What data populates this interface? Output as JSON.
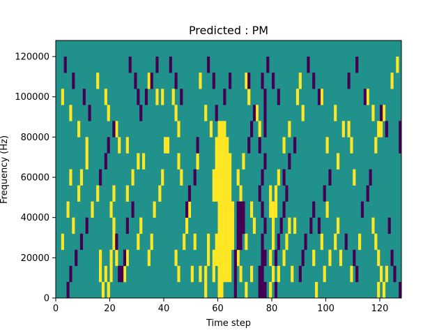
{
  "chart_data": {
    "type": "heatmap",
    "title": "Predicted : PM",
    "xlabel": "Time step",
    "ylabel": "Frequency (Hz)",
    "xlim": [
      0,
      128
    ],
    "ylim": [
      0,
      128000
    ],
    "xticks": [
      0,
      20,
      40,
      60,
      80,
      100,
      120
    ],
    "yticks": [
      0,
      20000,
      40000,
      60000,
      80000,
      100000,
      120000
    ],
    "grid": false,
    "legend": "none",
    "colors": {
      "background": "#21918c",
      "high": "#fde725",
      "low": "#440154"
    },
    "cells_high": [
      [
        60,
        10
      ],
      [
        60,
        9
      ],
      [
        60,
        8
      ],
      [
        60,
        7
      ],
      [
        60,
        6
      ],
      [
        60,
        5
      ],
      [
        60,
        4
      ],
      [
        60,
        3
      ],
      [
        60,
        2
      ],
      [
        60,
        1
      ],
      [
        60,
        0
      ],
      [
        61,
        10
      ],
      [
        61,
        9
      ],
      [
        61,
        8
      ],
      [
        61,
        7
      ],
      [
        61,
        6
      ],
      [
        61,
        5
      ],
      [
        61,
        4
      ],
      [
        61,
        3
      ],
      [
        61,
        2
      ],
      [
        61,
        1
      ],
      [
        61,
        0
      ],
      [
        62,
        10
      ],
      [
        62,
        9
      ],
      [
        62,
        8
      ],
      [
        62,
        7
      ],
      [
        62,
        6
      ],
      [
        62,
        5
      ],
      [
        62,
        4
      ],
      [
        62,
        3
      ],
      [
        62,
        2
      ],
      [
        62,
        1
      ],
      [
        63,
        9
      ],
      [
        63,
        8
      ],
      [
        63,
        7
      ],
      [
        63,
        6
      ],
      [
        63,
        5
      ],
      [
        63,
        4
      ],
      [
        63,
        3
      ],
      [
        63,
        2
      ],
      [
        63,
        1
      ],
      [
        64,
        8
      ],
      [
        64,
        7
      ],
      [
        64,
        6
      ],
      [
        64,
        5
      ],
      [
        64,
        4
      ],
      [
        64,
        3
      ],
      [
        64,
        2
      ],
      [
        64,
        1
      ],
      [
        65,
        5
      ],
      [
        65,
        4
      ],
      [
        65,
        3
      ],
      [
        59,
        9
      ],
      [
        59,
        8
      ],
      [
        59,
        7
      ],
      [
        59,
        6
      ],
      [
        58,
        6
      ],
      [
        58,
        7
      ],
      [
        59,
        3
      ],
      [
        59,
        2
      ],
      [
        58,
        2
      ],
      [
        58,
        1
      ],
      [
        56,
        2
      ],
      [
        56,
        3
      ],
      [
        55,
        1
      ],
      [
        55,
        0
      ],
      [
        53,
        1
      ],
      [
        20,
        1
      ],
      [
        20,
        2
      ],
      [
        21,
        3
      ],
      [
        21,
        4
      ],
      [
        20,
        5
      ],
      [
        21,
        6
      ],
      [
        19,
        0
      ],
      [
        18,
        1
      ],
      [
        17,
        0
      ],
      [
        16,
        1
      ],
      [
        16,
        2
      ],
      [
        22,
        2
      ],
      [
        30,
        3
      ],
      [
        31,
        4
      ],
      [
        35,
        3
      ],
      [
        34,
        2
      ],
      [
        25,
        1
      ],
      [
        26,
        2
      ],
      [
        79,
        0
      ],
      [
        80,
        1
      ],
      [
        79,
        2
      ],
      [
        80,
        3
      ],
      [
        80,
        4
      ],
      [
        80,
        5
      ],
      [
        79,
        6
      ],
      [
        81,
        6
      ],
      [
        81,
        5
      ],
      [
        79,
        5
      ],
      [
        82,
        1
      ],
      [
        82,
        7
      ],
      [
        84,
        2
      ],
      [
        85,
        3
      ],
      [
        86,
        4
      ],
      [
        87,
        1
      ],
      [
        88,
        4
      ],
      [
        46,
        7
      ],
      [
        45,
        8
      ],
      [
        49,
        5
      ],
      [
        50,
        1
      ],
      [
        51,
        3
      ],
      [
        26,
        9
      ],
      [
        32,
        8
      ],
      [
        34,
        13
      ],
      [
        37,
        12
      ],
      [
        39,
        12
      ],
      [
        40,
        9
      ],
      [
        67,
        7
      ],
      [
        68,
        6
      ],
      [
        69,
        8
      ],
      [
        70,
        3
      ],
      [
        72,
        5
      ],
      [
        73,
        4
      ],
      [
        95,
        2
      ],
      [
        98,
        3
      ],
      [
        100,
        5
      ],
      [
        103,
        3
      ],
      [
        104,
        4
      ],
      [
        105,
        2
      ],
      [
        109,
        1
      ],
      [
        112,
        3
      ],
      [
        117,
        4
      ],
      [
        118,
        3
      ],
      [
        119,
        2
      ],
      [
        120,
        1
      ],
      [
        121,
        0
      ],
      [
        122,
        1
      ],
      [
        119,
        0
      ],
      [
        2,
        3
      ],
      [
        4,
        5
      ],
      [
        9,
        7
      ],
      [
        8,
        6
      ],
      [
        6,
        4
      ],
      [
        5,
        7
      ],
      [
        118,
        9
      ],
      [
        120,
        10
      ],
      [
        121,
        11
      ],
      [
        124,
        13
      ],
      [
        126,
        14
      ],
      [
        100,
        9
      ],
      [
        104,
        8
      ],
      [
        108,
        10
      ],
      [
        110,
        7
      ],
      [
        90,
        13
      ],
      [
        89,
        12
      ],
      [
        91,
        11
      ],
      [
        86,
        10
      ],
      [
        84,
        9
      ],
      [
        70,
        13
      ],
      [
        71,
        12
      ],
      [
        74,
        11
      ],
      [
        75,
        10
      ],
      [
        53,
        13
      ],
      [
        55,
        11
      ],
      [
        57,
        10
      ],
      [
        52,
        8
      ],
      [
        43,
        12
      ],
      [
        44,
        11
      ],
      [
        45,
        10
      ],
      [
        41,
        9
      ],
      [
        15,
        13
      ],
      [
        18,
        12
      ],
      [
        19,
        11
      ],
      [
        22,
        10
      ],
      [
        23,
        9
      ],
      [
        2,
        12
      ],
      [
        5,
        11
      ],
      [
        8,
        10
      ],
      [
        11,
        9
      ],
      [
        98,
        12
      ],
      [
        103,
        11
      ],
      [
        106,
        10
      ],
      [
        109,
        9
      ],
      [
        115,
        12
      ],
      [
        117,
        11
      ],
      [
        119,
        10
      ],
      [
        67,
        2
      ],
      [
        68,
        1
      ],
      [
        70,
        0
      ],
      [
        72,
        1
      ],
      [
        96,
        0
      ],
      [
        99,
        1
      ],
      [
        101,
        2
      ],
      [
        44,
        2
      ],
      [
        45,
        1
      ],
      [
        47,
        3
      ],
      [
        48,
        4
      ],
      [
        36,
        5
      ],
      [
        38,
        6
      ],
      [
        39,
        7
      ],
      [
        26,
        6
      ],
      [
        28,
        7
      ],
      [
        30,
        8
      ],
      [
        11,
        8
      ],
      [
        13,
        5
      ],
      [
        15,
        6
      ]
    ],
    "cells_low": [
      [
        67,
        5
      ],
      [
        67,
        4
      ],
      [
        67,
        3
      ],
      [
        68,
        5
      ],
      [
        68,
        4
      ],
      [
        68,
        3
      ],
      [
        69,
        5
      ],
      [
        69,
        4
      ],
      [
        66,
        0
      ],
      [
        66,
        1
      ],
      [
        66,
        2
      ],
      [
        75,
        0
      ],
      [
        76,
        0
      ],
      [
        77,
        0
      ],
      [
        75,
        1
      ],
      [
        76,
        1
      ],
      [
        76,
        2
      ],
      [
        77,
        2
      ],
      [
        76,
        3
      ],
      [
        77,
        4
      ],
      [
        76,
        5
      ],
      [
        75,
        6
      ],
      [
        76,
        7
      ],
      [
        77,
        8
      ],
      [
        75,
        9
      ],
      [
        77,
        10
      ],
      [
        77,
        11
      ],
      [
        77,
        12
      ],
      [
        76,
        13
      ],
      [
        23,
        1
      ],
      [
        24,
        1
      ],
      [
        25,
        2
      ],
      [
        22,
        3
      ],
      [
        26,
        4
      ],
      [
        28,
        5
      ],
      [
        81,
        0
      ],
      [
        81,
        2
      ],
      [
        82,
        3
      ],
      [
        83,
        4
      ],
      [
        84,
        5
      ],
      [
        85,
        6
      ],
      [
        90,
        1
      ],
      [
        91,
        2
      ],
      [
        92,
        3
      ],
      [
        94,
        4
      ],
      [
        95,
        5
      ],
      [
        4,
        0
      ],
      [
        5,
        1
      ],
      [
        7,
        2
      ],
      [
        9,
        3
      ],
      [
        11,
        4
      ],
      [
        16,
        7
      ],
      [
        18,
        8
      ],
      [
        19,
        9
      ],
      [
        21,
        10
      ],
      [
        31,
        11
      ],
      [
        33,
        12
      ],
      [
        35,
        13
      ],
      [
        37,
        14
      ],
      [
        48,
        5
      ],
      [
        49,
        6
      ],
      [
        51,
        7
      ],
      [
        52,
        9
      ],
      [
        59,
        11
      ],
      [
        62,
        12
      ],
      [
        64,
        13
      ],
      [
        71,
        9
      ],
      [
        72,
        10
      ],
      [
        73,
        11
      ],
      [
        71,
        13
      ],
      [
        84,
        7
      ],
      [
        86,
        8
      ],
      [
        88,
        9
      ],
      [
        97,
        4
      ],
      [
        99,
        6
      ],
      [
        101,
        7
      ],
      [
        107,
        3
      ],
      [
        110,
        2
      ],
      [
        111,
        1
      ],
      [
        113,
        5
      ],
      [
        115,
        6
      ],
      [
        116,
        7
      ],
      [
        123,
        4
      ],
      [
        124,
        2
      ],
      [
        125,
        1
      ],
      [
        127,
        0
      ],
      [
        127,
        9
      ],
      [
        127,
        10
      ],
      [
        3,
        14
      ],
      [
        6,
        13
      ],
      [
        10,
        12
      ],
      [
        12,
        11
      ],
      [
        27,
        14
      ],
      [
        29,
        13
      ],
      [
        30,
        12
      ],
      [
        42,
        14
      ],
      [
        44,
        13
      ],
      [
        46,
        12
      ],
      [
        56,
        14
      ],
      [
        58,
        13
      ],
      [
        78,
        14
      ],
      [
        80,
        13
      ],
      [
        82,
        12
      ],
      [
        93,
        14
      ],
      [
        95,
        13
      ],
      [
        97,
        12
      ],
      [
        108,
        13
      ],
      [
        111,
        14
      ],
      [
        114,
        12
      ],
      [
        120,
        11
      ],
      [
        122,
        10
      ]
    ]
  }
}
